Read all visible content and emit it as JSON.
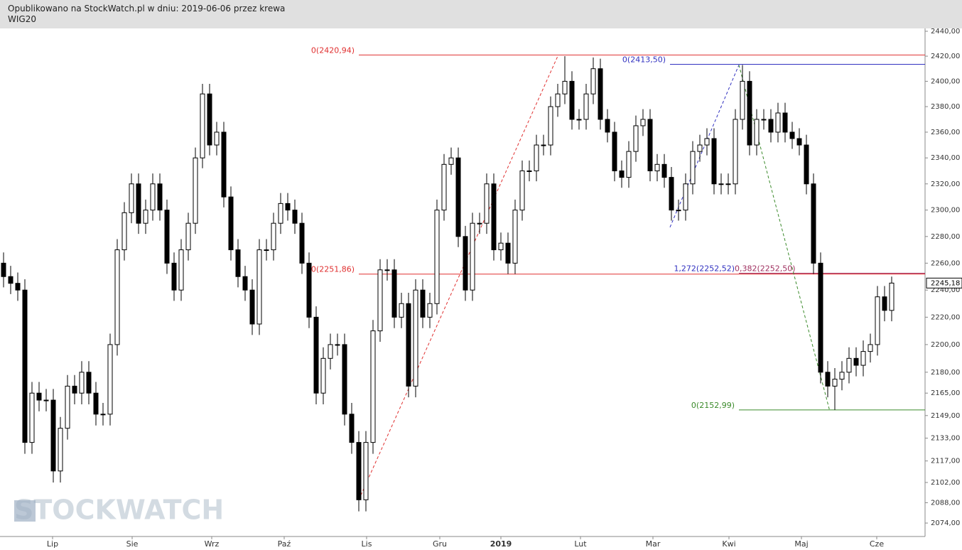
{
  "header": {
    "title": "Opublikowano na StockWatch.pl w dniu: 2019-06-06 przez krewa"
  },
  "chart_data": {
    "type": "candlestick",
    "title": "WIG20",
    "watermark": "STOCKWATCH",
    "x": [
      0,
      1,
      2,
      3,
      4,
      5,
      6,
      7,
      8,
      9,
      10,
      11,
      12,
      13,
      14,
      15,
      16,
      17,
      18,
      19,
      20,
      21,
      22,
      23,
      24,
      25,
      26,
      27,
      28,
      29,
      30,
      31,
      32,
      33,
      34,
      35,
      36,
      37,
      38,
      39,
      40,
      41,
      42,
      43,
      44,
      45,
      46,
      47,
      48,
      49,
      50,
      51,
      52,
      53,
      54,
      55,
      56,
      57,
      58,
      59,
      60,
      61,
      62,
      63,
      64,
      65,
      66,
      67,
      68,
      69,
      70,
      71,
      72,
      73,
      74,
      75,
      76,
      77,
      78,
      79,
      80,
      81,
      82,
      83,
      84,
      85,
      86,
      87,
      88,
      89,
      90,
      91,
      92,
      93,
      94,
      95,
      96,
      97,
      98,
      99,
      100,
      101,
      102,
      103,
      104,
      105,
      106,
      107,
      108,
      109,
      110,
      111,
      112,
      113,
      114,
      115,
      116,
      117,
      118,
      119,
      120,
      121,
      122,
      123,
      124,
      125
    ],
    "open": [
      2260,
      2250,
      2245,
      2240,
      2130,
      2165,
      2160,
      2160,
      2110,
      2140,
      2170,
      2165,
      2180,
      2165,
      2150,
      2150,
      2200,
      2270,
      2298,
      2320,
      2290,
      2300,
      2320,
      2300,
      2260,
      2240,
      2270,
      2290,
      2340,
      2390,
      2350,
      2360,
      2310,
      2270,
      2250,
      2240,
      2215,
      2270,
      2270,
      2290,
      2305,
      2300,
      2290,
      2260,
      2220,
      2165,
      2190,
      2200,
      2200,
      2150,
      2130,
      2090,
      2130,
      2210,
      2255,
      2255,
      2220,
      2230,
      2170,
      2240,
      2220,
      2230,
      2300,
      2335,
      2340,
      2280,
      2240,
      2290,
      2290,
      2320,
      2270,
      2275,
      2260,
      2300,
      2330,
      2330,
      2350,
      2350,
      2380,
      2390,
      2400,
      2370,
      2370,
      2390,
      2410,
      2370,
      2360,
      2330,
      2325,
      2345,
      2365,
      2370,
      2330,
      2335,
      2325,
      2300,
      2300,
      2320,
      2345,
      2350,
      2355,
      2320,
      2320,
      2320,
      2370,
      2400,
      2350,
      2370,
      2370,
      2360,
      2375,
      2360,
      2355,
      2350,
      2320,
      2260,
      2180,
      2170,
      2175,
      2180,
      2190,
      2185,
      2195,
      2200,
      2235,
      2225
    ],
    "high": [
      2268,
      2258,
      2253,
      2248,
      2173,
      2173,
      2168,
      2168,
      2148,
      2178,
      2178,
      2188,
      2188,
      2173,
      2158,
      2208,
      2278,
      2306,
      2328,
      2328,
      2308,
      2328,
      2328,
      2308,
      2268,
      2278,
      2298,
      2348,
      2398,
      2398,
      2368,
      2368,
      2318,
      2278,
      2258,
      2248,
      2278,
      2278,
      2298,
      2313,
      2313,
      2308,
      2298,
      2268,
      2228,
      2198,
      2208,
      2208,
      2208,
      2158,
      2138,
      2138,
      2218,
      2263,
      2263,
      2263,
      2238,
      2238,
      2248,
      2248,
      2238,
      2308,
      2343,
      2348,
      2348,
      2288,
      2298,
      2298,
      2328,
      2328,
      2283,
      2283,
      2308,
      2338,
      2338,
      2358,
      2358,
      2388,
      2398,
      2420,
      2408,
      2378,
      2398,
      2419,
      2418,
      2378,
      2368,
      2338,
      2353,
      2373,
      2378,
      2378,
      2343,
      2343,
      2333,
      2308,
      2328,
      2353,
      2358,
      2363,
      2363,
      2328,
      2328,
      2378,
      2413,
      2408,
      2378,
      2378,
      2378,
      2383,
      2383,
      2368,
      2363,
      2358,
      2328,
      2268,
      2188,
      2183,
      2188,
      2198,
      2198,
      2203,
      2208,
      2243,
      2243,
      2250
    ],
    "low": [
      2242,
      2237,
      2232,
      2122,
      2122,
      2152,
      2152,
      2102,
      2102,
      2132,
      2157,
      2157,
      2157,
      2142,
      2142,
      2142,
      2192,
      2262,
      2290,
      2282,
      2282,
      2292,
      2292,
      2252,
      2232,
      2232,
      2262,
      2282,
      2332,
      2342,
      2342,
      2302,
      2262,
      2242,
      2232,
      2207,
      2207,
      2262,
      2262,
      2282,
      2292,
      2282,
      2252,
      2212,
      2157,
      2157,
      2182,
      2192,
      2142,
      2122,
      2082,
      2082,
      2122,
      2202,
      2247,
      2212,
      2212,
      2162,
      2162,
      2212,
      2212,
      2222,
      2292,
      2327,
      2272,
      2232,
      2232,
      2282,
      2282,
      2262,
      2262,
      2252,
      2252,
      2292,
      2322,
      2322,
      2342,
      2342,
      2372,
      2382,
      2362,
      2362,
      2362,
      2382,
      2362,
      2352,
      2322,
      2317,
      2317,
      2337,
      2357,
      2322,
      2322,
      2317,
      2292,
      2292,
      2292,
      2312,
      2337,
      2342,
      2312,
      2312,
      2312,
      2312,
      2362,
      2342,
      2342,
      2362,
      2352,
      2352,
      2352,
      2347,
      2342,
      2312,
      2252,
      2172,
      2162,
      2153,
      2167,
      2172,
      2177,
      2177,
      2187,
      2192,
      2217,
      2217
    ],
    "close": [
      2250,
      2245,
      2240,
      2130,
      2165,
      2160,
      2160,
      2110,
      2140,
      2170,
      2165,
      2180,
      2165,
      2150,
      2150,
      2200,
      2270,
      2298,
      2320,
      2290,
      2300,
      2320,
      2300,
      2260,
      2240,
      2270,
      2290,
      2340,
      2390,
      2350,
      2360,
      2310,
      2270,
      2250,
      2240,
      2215,
      2270,
      2270,
      2290,
      2305,
      2300,
      2290,
      2260,
      2220,
      2165,
      2190,
      2200,
      2200,
      2150,
      2130,
      2090,
      2130,
      2210,
      2255,
      2255,
      2220,
      2230,
      2170,
      2240,
      2220,
      2230,
      2300,
      2335,
      2340,
      2280,
      2240,
      2290,
      2290,
      2320,
      2270,
      2275,
      2260,
      2300,
      2330,
      2330,
      2350,
      2350,
      2380,
      2390,
      2400,
      2370,
      2370,
      2390,
      2410,
      2370,
      2360,
      2330,
      2325,
      2345,
      2365,
      2370,
      2330,
      2335,
      2325,
      2300,
      2300,
      2320,
      2345,
      2350,
      2355,
      2320,
      2320,
      2320,
      2370,
      2400,
      2350,
      2370,
      2370,
      2360,
      2375,
      2360,
      2355,
      2350,
      2320,
      2260,
      2180,
      2170,
      2175,
      2180,
      2190,
      2185,
      2195,
      2200,
      2235,
      2225,
      2245.18
    ],
    "up_color": "#ffffff",
    "down_color": "#000000",
    "xlim": [
      -0.5,
      129.7
    ],
    "xticks": [
      {
        "value": 6.9,
        "label": "Lip"
      },
      {
        "value": 18.1,
        "label": "Sie"
      },
      {
        "value": 29.3,
        "label": "Wrz"
      },
      {
        "value": 39.5,
        "label": "Paź"
      },
      {
        "value": 51.1,
        "label": "Lis"
      },
      {
        "value": 61.4,
        "label": "Gru"
      },
      {
        "value": 70.0,
        "label": "2019",
        "bold": true
      },
      {
        "value": 81.2,
        "label": "Lut"
      },
      {
        "value": 91.4,
        "label": "Mar"
      },
      {
        "value": 102.1,
        "label": "Kwi"
      },
      {
        "value": 112.3,
        "label": "Maj"
      },
      {
        "value": 122.9,
        "label": "Cze"
      }
    ],
    "ylim": [
      2064.8,
      2442.3
    ],
    "log_scale": true,
    "yticks": [
      {
        "value": 2440,
        "label": "2440,00"
      },
      {
        "value": 2420,
        "label": "2420,00"
      },
      {
        "value": 2400,
        "label": "2400,00"
      },
      {
        "value": 2380,
        "label": "2380,00"
      },
      {
        "value": 2360,
        "label": "2360,00"
      },
      {
        "value": 2340,
        "label": "2340,00"
      },
      {
        "value": 2320,
        "label": "2320,00"
      },
      {
        "value": 2300,
        "label": "2300,00"
      },
      {
        "value": 2280,
        "label": "2280,00"
      },
      {
        "value": 2260,
        "label": "2260,00"
      },
      {
        "value": 2240,
        "label": "2240,00"
      },
      {
        "value": 2220,
        "label": "2220,00"
      },
      {
        "value": 2200,
        "label": "2200,00"
      },
      {
        "value": 2180,
        "label": "2180,00"
      },
      {
        "value": 2165,
        "label": "2165,00"
      },
      {
        "value": 2149,
        "label": "2149,00"
      },
      {
        "value": 2133,
        "label": "2133,00"
      },
      {
        "value": 2117,
        "label": "2117,00"
      },
      {
        "value": 2102,
        "label": "2102,00"
      },
      {
        "value": 2088,
        "label": "2088,00"
      },
      {
        "value": 2074,
        "label": "2074,00"
      }
    ],
    "last_price": {
      "value": 2245.18,
      "label": "2245,18"
    },
    "levels": [
      {
        "value": 2420.94,
        "label": "0(2420,94)",
        "color": "#e03030",
        "start": 50
      },
      {
        "value": 2251.86,
        "label": "0(2251,86)",
        "color": "#e03030",
        "start": 50
      },
      {
        "value": 2413.5,
        "label": "0(2413,50)",
        "color": "#3030c0",
        "start": 93.8
      },
      {
        "value": 2252.52,
        "label": "1,272(2252,52)",
        "color": "#3030c0",
        "start": 103.5
      },
      {
        "value": 2252.5,
        "label": "0,382(2252,50)",
        "color": "#a03060",
        "start": 103.5
      },
      {
        "value": 2152.99,
        "label": "0(2152,99)",
        "color": "#3a8a2a",
        "start": 103.5
      }
    ],
    "trendlines": [
      {
        "x": [
          50,
          78
        ],
        "y": [
          2090,
          2420
        ],
        "color": "#e03030"
      },
      {
        "x": [
          93.8,
          103.5
        ],
        "y": [
          2287,
          2413
        ],
        "color": "#3030c0"
      },
      {
        "x": [
          103.5,
          116.3
        ],
        "y": [
          2413,
          2152
        ],
        "color": "#3a8a2a"
      }
    ]
  }
}
